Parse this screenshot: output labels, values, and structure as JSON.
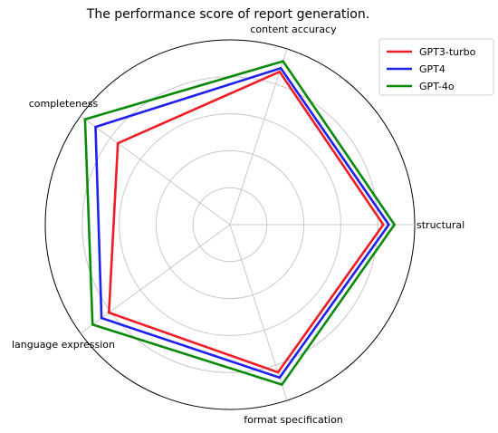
{
  "chart_data": {
    "type": "radar",
    "title": "The performance score of report generation.",
    "categories": [
      "structural",
      "content accuracy",
      "completeness",
      "language expression",
      "format specification"
    ],
    "rlim": [
      0,
      5
    ],
    "grid": true,
    "legend_position": "top-right",
    "series": [
      {
        "name": "GPT3-turbo",
        "color": "#ee1c25",
        "values": [
          4.15,
          4.35,
          3.75,
          4.05,
          4.2
        ]
      },
      {
        "name": "GPT4",
        "color": "#1f1fee",
        "values": [
          4.3,
          4.45,
          4.5,
          4.3,
          4.35
        ]
      },
      {
        "name": "GPT-4o",
        "color": "#0a8a0a",
        "values": [
          4.45,
          4.65,
          4.85,
          4.6,
          4.55
        ]
      }
    ]
  }
}
